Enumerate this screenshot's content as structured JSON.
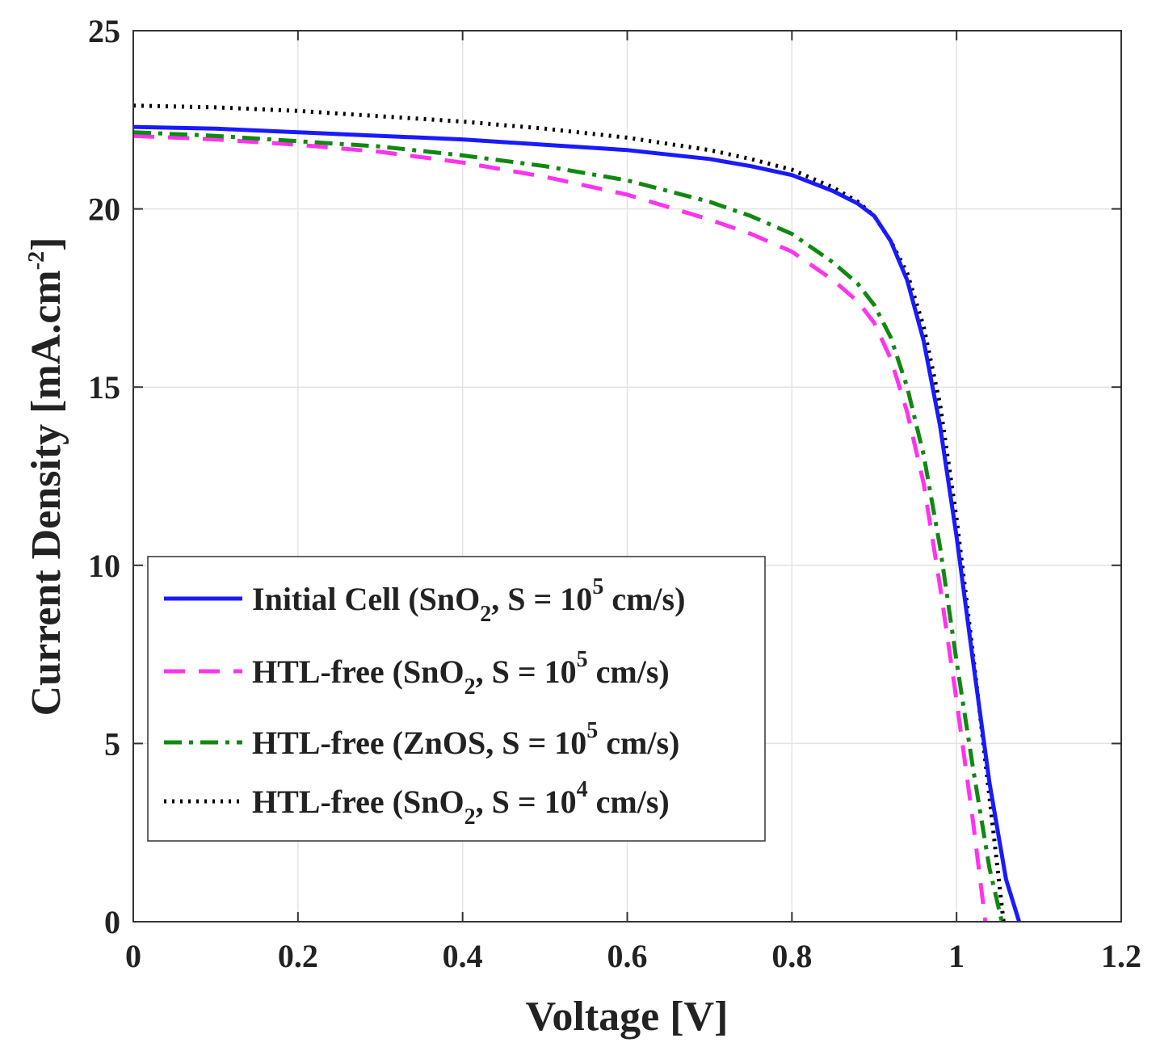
{
  "chart_data": {
    "type": "line",
    "title": "",
    "xlabel": "Voltage [V]",
    "ylabel": {
      "text": "Current Density [mA.cm",
      "sup": "-2",
      "close": "]"
    },
    "xlim": [
      0,
      1.2
    ],
    "ylim": [
      0,
      25
    ],
    "grid": true,
    "legend_position": "bottom-left",
    "xticks": [
      0,
      0.2,
      0.4,
      0.6,
      0.8,
      1,
      1.2
    ],
    "xtick_labels": [
      "0",
      "0.2",
      "0.4",
      "0.6",
      "0.8",
      "1",
      "1.2"
    ],
    "yticks": [
      0,
      5,
      10,
      15,
      20,
      25
    ],
    "ytick_labels": [
      "0",
      "5",
      "10",
      "15",
      "20",
      "25"
    ],
    "series": [
      {
        "name": "Initial Cell (SnO2, S = 10^5 cm/s)",
        "legend_parts": {
          "pre": "Initial Cell (SnO",
          "sub": "2",
          "mid": ", S = 10",
          "sup": "5",
          "post": " cm/s)"
        },
        "color": "#1a1aff",
        "style": "solid",
        "x": [
          0,
          0.1,
          0.2,
          0.3,
          0.4,
          0.5,
          0.6,
          0.7,
          0.75,
          0.8,
          0.85,
          0.88,
          0.9,
          0.92,
          0.94,
          0.96,
          0.98,
          1.0,
          1.02,
          1.04,
          1.06,
          1.076
        ],
        "y": [
          22.3,
          22.25,
          22.15,
          22.05,
          21.95,
          21.8,
          21.65,
          21.4,
          21.2,
          20.95,
          20.5,
          20.15,
          19.8,
          19.1,
          18.0,
          16.3,
          13.9,
          10.8,
          7.3,
          3.9,
          1.2,
          0
        ]
      },
      {
        "name": "HTL-free (SnO2, S = 10^5 cm/s)",
        "legend_parts": {
          "pre": "HTL-free (SnO",
          "sub": "2",
          "mid": ", S = 10",
          "sup": "5",
          "post": " cm/s)"
        },
        "color": "#ff33ee",
        "style": "dashed",
        "x": [
          0,
          0.1,
          0.2,
          0.3,
          0.4,
          0.5,
          0.6,
          0.7,
          0.75,
          0.8,
          0.85,
          0.88,
          0.9,
          0.92,
          0.94,
          0.96,
          0.98,
          1.0,
          1.02,
          1.035
        ],
        "y": [
          22.05,
          21.95,
          21.8,
          21.6,
          21.3,
          20.9,
          20.4,
          19.7,
          19.3,
          18.8,
          18.0,
          17.4,
          16.8,
          15.8,
          14.3,
          12.3,
          9.4,
          6.2,
          2.8,
          0
        ]
      },
      {
        "name": "HTL-free (ZnOS, S = 10^5 cm/s)",
        "legend_parts": {
          "pre": "HTL-free (ZnOS, S = 10",
          "sub": "",
          "mid": "",
          "sup": "5",
          "post": " cm/s)"
        },
        "color": "#118811",
        "style": "dashdot",
        "x": [
          0,
          0.1,
          0.2,
          0.3,
          0.4,
          0.5,
          0.6,
          0.7,
          0.75,
          0.8,
          0.85,
          0.88,
          0.9,
          0.92,
          0.94,
          0.96,
          0.98,
          1.0,
          1.02,
          1.04,
          1.055
        ],
        "y": [
          22.15,
          22.05,
          21.9,
          21.75,
          21.5,
          21.2,
          20.8,
          20.2,
          19.8,
          19.3,
          18.5,
          17.9,
          17.3,
          16.4,
          15.0,
          13.1,
          10.5,
          7.3,
          4.3,
          1.5,
          0
        ]
      },
      {
        "name": "HTL-free (SnO2, S = 10^4 cm/s)",
        "legend_parts": {
          "pre": "HTL-free (SnO",
          "sub": "2",
          "mid": ", S = 10",
          "sup": "4",
          "post": " cm/s)"
        },
        "color": "#000000",
        "style": "dotted",
        "x": [
          0,
          0.1,
          0.2,
          0.3,
          0.4,
          0.5,
          0.6,
          0.7,
          0.75,
          0.8,
          0.85,
          0.88,
          0.9,
          0.92,
          0.94,
          0.96,
          0.98,
          1.0,
          1.02,
          1.04,
          1.057
        ],
        "y": [
          22.9,
          22.85,
          22.75,
          22.6,
          22.45,
          22.25,
          22.0,
          21.65,
          21.4,
          21.1,
          20.6,
          20.2,
          19.8,
          19.1,
          18.2,
          16.7,
          14.5,
          11.3,
          7.5,
          3.5,
          0
        ]
      }
    ]
  }
}
